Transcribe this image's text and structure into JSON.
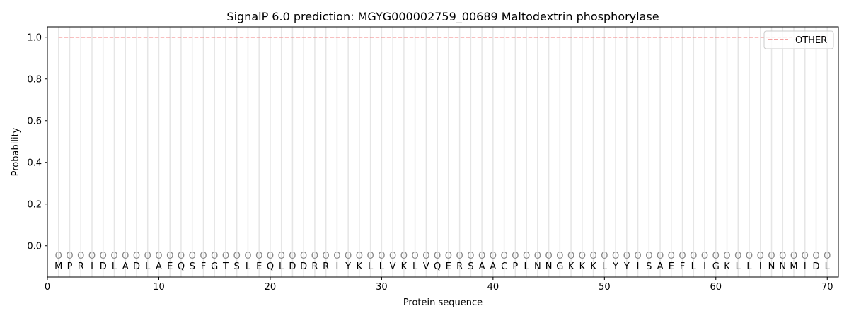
{
  "chart_data": {
    "type": "line",
    "title": "SignalP 6.0 prediction: MGYG000002759_00689 Maltodextrin phosphorylase",
    "xlabel": "Protein sequence",
    "ylabel": "Probability",
    "xlim": [
      0,
      71
    ],
    "ylim": [
      -0.15,
      1.05
    ],
    "xticks": [
      0,
      10,
      20,
      30,
      40,
      50,
      60,
      70
    ],
    "yticks": [
      0.0,
      0.2,
      0.4,
      0.6,
      0.8,
      1.0
    ],
    "ytick_labels": [
      "0.0",
      "0.2",
      "0.4",
      "0.6",
      "0.8",
      "1.0"
    ],
    "grid": "vertical lines at each residue",
    "legend_placement": "top-right",
    "sequence": "MPRIDLADLAEQSFGTSLEQLDDRRIYKLLVKLVQERSAACPLNNGKKKLYYISAEFLIGKLLINNMIDL",
    "predicted_labels": "OOOOOOOOOOOOOOOOOOOOOOOOOOOOOOOOOOOOOOOOOOOOOOOOOOOOOOOOOOOOOOOOOOOOOO",
    "series": [
      {
        "name": "OTHER",
        "color": "#f08080",
        "style": "dashed",
        "x_range": [
          1,
          70
        ],
        "value": 1.0
      }
    ]
  }
}
